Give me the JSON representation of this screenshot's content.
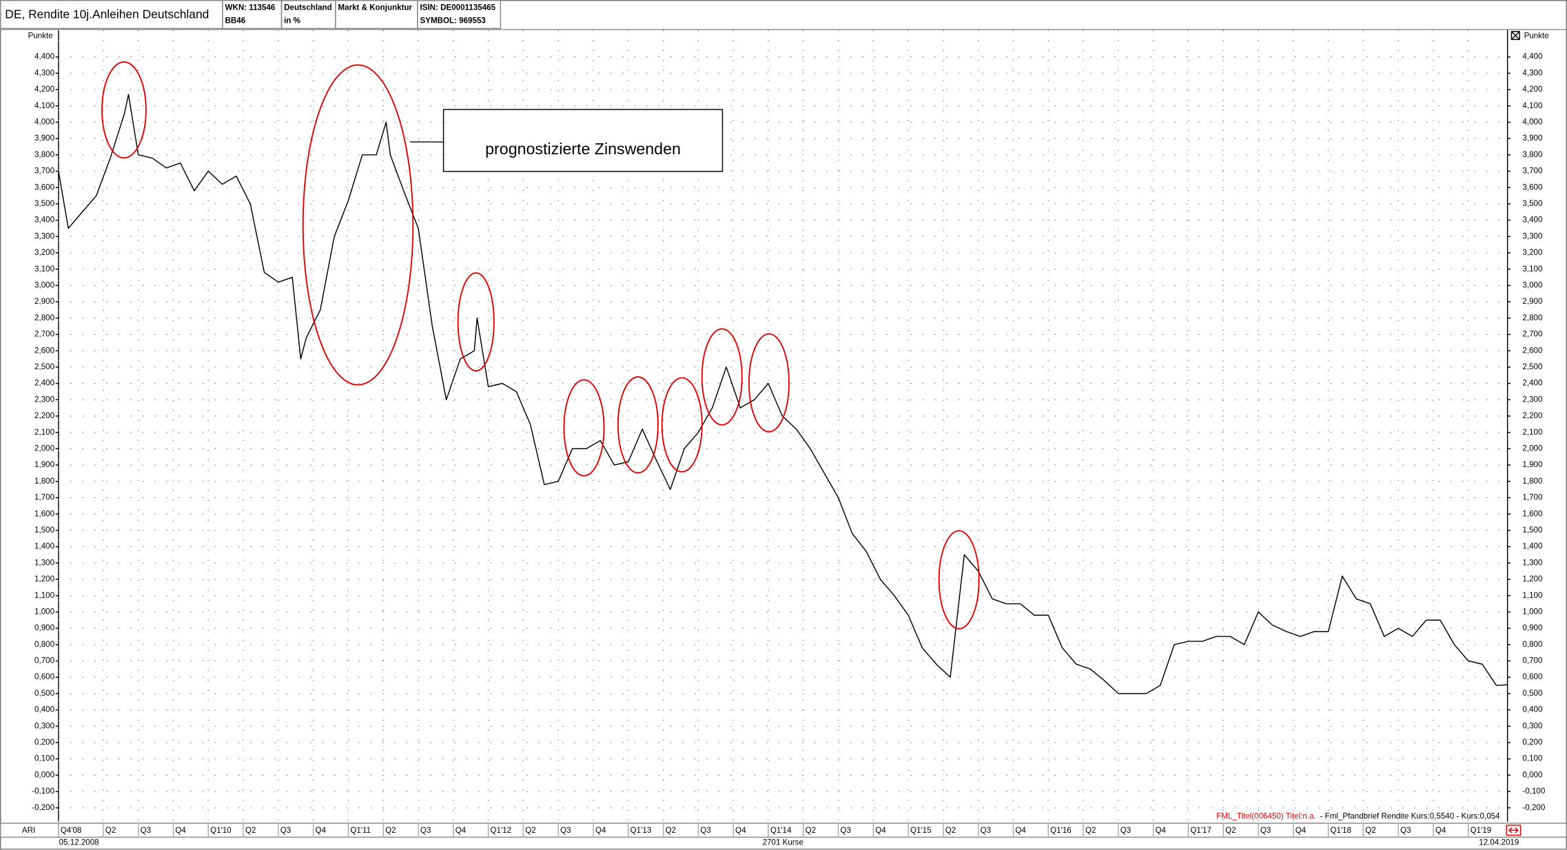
{
  "header": {
    "title": "DE, Rendite 10j.Anleihen Deutschland",
    "wkn": "WKN: 113546",
    "code": "BB46",
    "country": "Deutschland",
    "unit": "in %",
    "group": "Markt & Konjunktur",
    "isin": "ISIN: DE0001135465",
    "symbol": "SYMBOL: 969553"
  },
  "chart_data": {
    "type": "line",
    "y_label": "Punkte",
    "color": "#000000",
    "grid": true,
    "annotation": "prognostizierte Zinswenden",
    "legend_title": "FML_Titel(006450) Titel:n.a.",
    "legend_detail": "- Fml_Pfandbrief Rendite Kurs:0,5540 - Kurs:0,054",
    "indicator": "ARI",
    "start_date": "05.12.2008",
    "end_date": "12.04.2019",
    "count_label": "2701 Kurse",
    "xlim": [
      2008.93,
      2019.28
    ],
    "ylim": [
      -0.285,
      4.565
    ],
    "xticks": [
      {
        "value": 2008.93,
        "label": "Q4'08"
      },
      {
        "value": 2009.25,
        "label": "Q2"
      },
      {
        "value": 2009.5,
        "label": "Q3"
      },
      {
        "value": 2009.75,
        "label": "Q4"
      },
      {
        "value": 2010.0,
        "label": "Q1'10"
      },
      {
        "value": 2010.25,
        "label": "Q2"
      },
      {
        "value": 2010.5,
        "label": "Q3"
      },
      {
        "value": 2010.75,
        "label": "Q4"
      },
      {
        "value": 2011.0,
        "label": "Q1'11"
      },
      {
        "value": 2011.25,
        "label": "Q2"
      },
      {
        "value": 2011.5,
        "label": "Q3"
      },
      {
        "value": 2011.75,
        "label": "Q4"
      },
      {
        "value": 2012.0,
        "label": "Q1'12"
      },
      {
        "value": 2012.25,
        "label": "Q2"
      },
      {
        "value": 2012.5,
        "label": "Q3"
      },
      {
        "value": 2012.75,
        "label": "Q4"
      },
      {
        "value": 2013.0,
        "label": "Q1'13"
      },
      {
        "value": 2013.25,
        "label": "Q2"
      },
      {
        "value": 2013.5,
        "label": "Q3"
      },
      {
        "value": 2013.75,
        "label": "Q4"
      },
      {
        "value": 2014.0,
        "label": "Q1'14"
      },
      {
        "value": 2014.25,
        "label": "Q2"
      },
      {
        "value": 2014.5,
        "label": "Q3"
      },
      {
        "value": 2014.75,
        "label": "Q4"
      },
      {
        "value": 2015.0,
        "label": "Q1'15"
      },
      {
        "value": 2015.25,
        "label": "Q2"
      },
      {
        "value": 2015.5,
        "label": "Q3"
      },
      {
        "value": 2015.75,
        "label": "Q4"
      },
      {
        "value": 2016.0,
        "label": "Q1'16"
      },
      {
        "value": 2016.25,
        "label": "Q2"
      },
      {
        "value": 2016.5,
        "label": "Q3"
      },
      {
        "value": 2016.75,
        "label": "Q4"
      },
      {
        "value": 2017.0,
        "label": "Q1'17"
      },
      {
        "value": 2017.25,
        "label": "Q2"
      },
      {
        "value": 2017.5,
        "label": "Q3"
      },
      {
        "value": 2017.75,
        "label": "Q4"
      },
      {
        "value": 2018.0,
        "label": "Q1'18"
      },
      {
        "value": 2018.25,
        "label": "Q2"
      },
      {
        "value": 2018.5,
        "label": "Q3"
      },
      {
        "value": 2018.75,
        "label": "Q4"
      },
      {
        "value": 2019.0,
        "label": "Q1'19"
      }
    ],
    "yticks": [
      {
        "value": 4.4,
        "label": "4,400"
      },
      {
        "value": 4.3,
        "label": "4,300"
      },
      {
        "value": 4.2,
        "label": "4,200"
      },
      {
        "value": 4.1,
        "label": "4,100"
      },
      {
        "value": 4.0,
        "label": "4,000"
      },
      {
        "value": 3.9,
        "label": "3,900"
      },
      {
        "value": 3.8,
        "label": "3,800"
      },
      {
        "value": 3.7,
        "label": "3,700"
      },
      {
        "value": 3.6,
        "label": "3,600"
      },
      {
        "value": 3.5,
        "label": "3,500"
      },
      {
        "value": 3.4,
        "label": "3,400"
      },
      {
        "value": 3.3,
        "label": "3,300"
      },
      {
        "value": 3.2,
        "label": "3,200"
      },
      {
        "value": 3.1,
        "label": "3,100"
      },
      {
        "value": 3.0,
        "label": "3,000"
      },
      {
        "value": 2.9,
        "label": "2,900"
      },
      {
        "value": 2.8,
        "label": "2,800"
      },
      {
        "value": 2.7,
        "label": "2,700"
      },
      {
        "value": 2.6,
        "label": "2,600"
      },
      {
        "value": 2.5,
        "label": "2,500"
      },
      {
        "value": 2.4,
        "label": "2,400"
      },
      {
        "value": 2.3,
        "label": "2,300"
      },
      {
        "value": 2.2,
        "label": "2,200"
      },
      {
        "value": 2.1,
        "label": "2,100"
      },
      {
        "value": 2.0,
        "label": "2,000"
      },
      {
        "value": 1.9,
        "label": "1,900"
      },
      {
        "value": 1.8,
        "label": "1,800"
      },
      {
        "value": 1.7,
        "label": "1,700"
      },
      {
        "value": 1.6,
        "label": "1,600"
      },
      {
        "value": 1.5,
        "label": "1,500"
      },
      {
        "value": 1.4,
        "label": "1,400"
      },
      {
        "value": 1.3,
        "label": "1,300"
      },
      {
        "value": 1.2,
        "label": "1,200"
      },
      {
        "value": 1.1,
        "label": "1,100"
      },
      {
        "value": 1.0,
        "label": "1,000"
      },
      {
        "value": 0.9,
        "label": "0,900"
      },
      {
        "value": 0.8,
        "label": "0,800"
      },
      {
        "value": 0.7,
        "label": "0,700"
      },
      {
        "value": 0.6,
        "label": "0,600"
      },
      {
        "value": 0.5,
        "label": "0,500"
      },
      {
        "value": 0.4,
        "label": "0,400"
      },
      {
        "value": 0.3,
        "label": "0,300"
      },
      {
        "value": 0.2,
        "label": "0,200"
      },
      {
        "value": 0.1,
        "label": "0,100"
      },
      {
        "value": 0.0,
        "label": "0,000"
      },
      {
        "value": -0.1,
        "label": "-0,100"
      },
      {
        "value": -0.2,
        "label": "-0,200"
      }
    ],
    "x": [
      2008.93,
      2009.0,
      2009.1,
      2009.2,
      2009.3,
      2009.4,
      2009.43,
      2009.5,
      2009.6,
      2009.7,
      2009.8,
      2009.9,
      2010.0,
      2010.1,
      2010.2,
      2010.3,
      2010.4,
      2010.5,
      2010.6,
      2010.66,
      2010.7,
      2010.8,
      2010.9,
      2011.0,
      2011.1,
      2011.2,
      2011.27,
      2011.3,
      2011.4,
      2011.5,
      2011.6,
      2011.7,
      2011.8,
      2011.9,
      2011.92,
      2012.0,
      2012.1,
      2012.2,
      2012.3,
      2012.4,
      2012.5,
      2012.6,
      2012.7,
      2012.8,
      2012.9,
      2013.0,
      2013.1,
      2013.2,
      2013.3,
      2013.4,
      2013.5,
      2013.6,
      2013.7,
      2013.8,
      2013.9,
      2014.0,
      2014.1,
      2014.2,
      2014.3,
      2014.4,
      2014.5,
      2014.6,
      2014.7,
      2014.8,
      2014.9,
      2015.0,
      2015.1,
      2015.2,
      2015.3,
      2015.4,
      2015.5,
      2015.6,
      2015.7,
      2015.8,
      2015.9,
      2016.0,
      2016.1,
      2016.2,
      2016.3,
      2016.4,
      2016.5,
      2016.6,
      2016.7,
      2016.8,
      2016.9,
      2017.0,
      2017.1,
      2017.2,
      2017.3,
      2017.4,
      2017.5,
      2017.6,
      2017.7,
      2017.8,
      2017.9,
      2018.0,
      2018.1,
      2018.2,
      2018.3,
      2018.4,
      2018.5,
      2018.6,
      2018.7,
      2018.8,
      2018.9,
      2019.0,
      2019.1,
      2019.2,
      2019.28
    ],
    "values": [
      3.7,
      3.35,
      3.45,
      3.55,
      3.78,
      4.05,
      4.17,
      3.8,
      3.78,
      3.72,
      3.75,
      3.58,
      3.7,
      3.62,
      3.67,
      3.5,
      3.08,
      3.02,
      3.05,
      2.55,
      2.68,
      2.85,
      3.3,
      3.52,
      3.8,
      3.8,
      4.0,
      3.8,
      3.57,
      3.35,
      2.75,
      2.3,
      2.55,
      2.6,
      2.8,
      2.38,
      2.4,
      2.35,
      2.15,
      1.78,
      1.8,
      2.0,
      2.0,
      2.05,
      1.9,
      1.92,
      2.12,
      1.93,
      1.75,
      2.0,
      2.1,
      2.25,
      2.5,
      2.25,
      2.3,
      2.4,
      2.2,
      2.12,
      2.0,
      1.85,
      1.7,
      1.48,
      1.37,
      1.2,
      1.1,
      0.98,
      0.78,
      0.68,
      0.6,
      1.35,
      1.25,
      1.08,
      1.05,
      1.05,
      0.98,
      0.98,
      0.78,
      0.68,
      0.65,
      0.58,
      0.5,
      0.5,
      0.5,
      0.55,
      0.8,
      0.82,
      0.82,
      0.85,
      0.85,
      0.8,
      1.0,
      0.92,
      0.88,
      0.85,
      0.88,
      0.88,
      1.22,
      1.08,
      1.05,
      0.85,
      0.9,
      0.85,
      0.95,
      0.95,
      0.8,
      0.7,
      0.68,
      0.55,
      0.554
    ]
  }
}
